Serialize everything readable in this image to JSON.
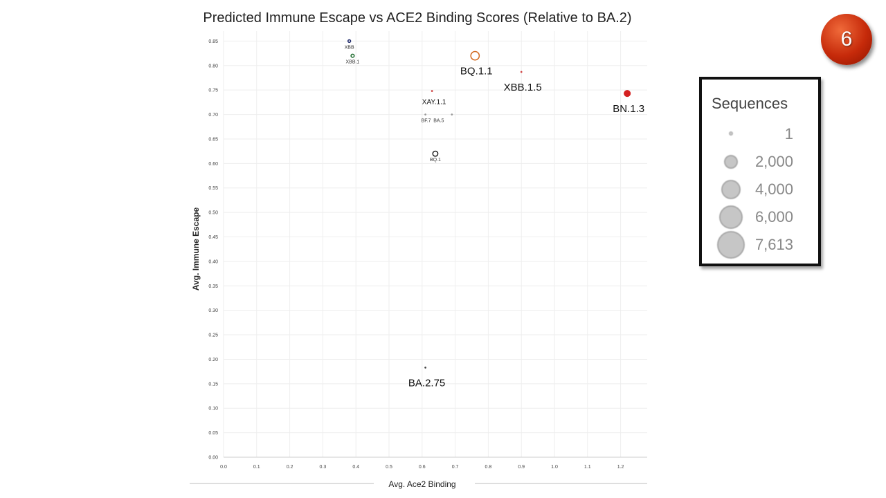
{
  "chart_data": {
    "type": "scatter",
    "title": "Predicted Immune Escape vs ACE2 Binding Scores (Relative to BA.2)",
    "xlabel": "Avg. Ace2 Binding",
    "ylabel": "Avg. Immune Escape",
    "xlim": [
      0.0,
      1.28
    ],
    "ylim": [
      0.0,
      0.86
    ],
    "xticks": [
      "0.0",
      "0.1",
      "0.2",
      "0.3",
      "0.4",
      "0.5",
      "0.6",
      "0.7",
      "0.8",
      "0.9",
      "1.0",
      "1.1",
      "1.2"
    ],
    "yticks": [
      "0.00",
      "0.05",
      "0.10",
      "0.15",
      "0.20",
      "0.25",
      "0.30",
      "0.35",
      "0.40",
      "0.45",
      "0.50",
      "0.55",
      "0.60",
      "0.65",
      "0.70",
      "0.75",
      "0.80",
      "0.85"
    ],
    "grid": true,
    "points": [
      {
        "label": "XBB",
        "x": 0.38,
        "y": 0.85,
        "sequences": 30,
        "color": "#1f2a6b",
        "hollow": true,
        "label_size": "small"
      },
      {
        "label": "XBB.1",
        "x": 0.39,
        "y": 0.82,
        "sequences": 60,
        "color": "#1e6b2e",
        "hollow": true,
        "label_size": "small"
      },
      {
        "label": "BQ.1.1",
        "x": 0.76,
        "y": 0.82,
        "sequences": 900,
        "color": "#d2691e",
        "hollow": true,
        "label_size": "large"
      },
      {
        "label": "XBB.1.5",
        "x": 0.9,
        "y": 0.787,
        "sequences": 1,
        "color": "#d04040",
        "hollow": false,
        "label_size": "large"
      },
      {
        "label": "XAY.1.1",
        "x": 0.63,
        "y": 0.748,
        "sequences": 1,
        "color": "#d04040",
        "hollow": false,
        "label_size": "mid"
      },
      {
        "label": "BN.1.3",
        "x": 1.22,
        "y": 0.743,
        "sequences": 500,
        "color": "#d42020",
        "hollow": false,
        "label_size": "large"
      },
      {
        "label": "BF.7",
        "x": 0.61,
        "y": 0.7,
        "sequences": 1,
        "color": "#999999",
        "hollow": false,
        "label_size": "small"
      },
      {
        "label": "BA.5",
        "x": 0.69,
        "y": 0.7,
        "sequences": 1,
        "color": "#999999",
        "hollow": false,
        "label_size": "small"
      },
      {
        "label": "BQ.1",
        "x": 0.64,
        "y": 0.62,
        "sequences": 250,
        "color": "#222222",
        "hollow": true,
        "label_size": "small"
      },
      {
        "label": "BA.2.75",
        "x": 0.61,
        "y": 0.183,
        "sequences": 1,
        "color": "#444444",
        "hollow": false,
        "label_size": "large"
      }
    ]
  },
  "badge": {
    "number": "6",
    "color": "#c62a0a"
  },
  "legend": {
    "title": "Sequences",
    "items": [
      {
        "label": "1",
        "value": 1
      },
      {
        "label": "2,000",
        "value": 2000
      },
      {
        "label": "4,000",
        "value": 4000
      },
      {
        "label": "6,000",
        "value": 6000
      },
      {
        "label": "7,613",
        "value": 7613
      }
    ]
  }
}
